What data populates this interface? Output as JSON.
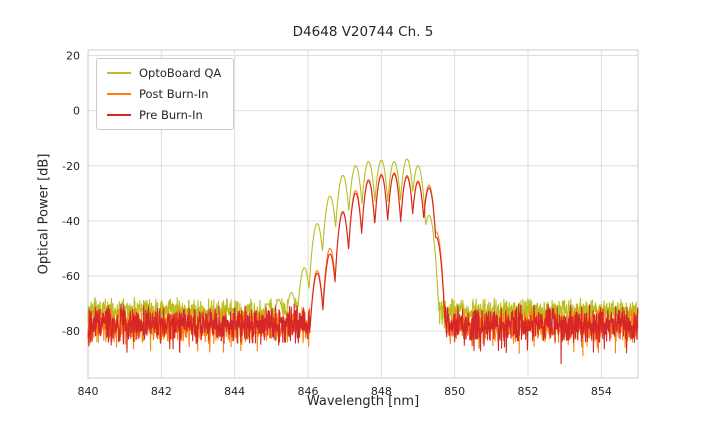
{
  "chart_data": {
    "type": "line",
    "title": "D4648 V20744 Ch. 5",
    "xlabel": "Wavelength [nm]",
    "ylabel": "Optical Power [dB]",
    "xlim": [
      840,
      855
    ],
    "ylim": [
      -97,
      22
    ],
    "xticks": [
      840,
      842,
      844,
      846,
      848,
      850,
      852,
      854
    ],
    "yticks": [
      20,
      0,
      -20,
      -40,
      -60,
      -80
    ],
    "grid": true,
    "legend_position": "upper left",
    "sample_step_nm": 0.008,
    "style": {
      "background": "#ffffff",
      "grid_color": "#dddddd",
      "axes_edge_color": "#cccccc",
      "text_color": "#262626",
      "tick_font_px": 11,
      "line_width": 1.1
    },
    "series": [
      {
        "name": "OptoBoard QA",
        "color": "#bcbd22",
        "sharpness_db_per_nm2": 480,
        "noise": {
          "floor_db": -72.5,
          "spread_db": 5,
          "spike_prob": 0.05,
          "spike_extra_db": 8,
          "seed": 7
        },
        "modes": [
          [
            844.9,
            -70
          ],
          [
            845.2,
            -68.5
          ],
          [
            845.55,
            -66
          ],
          [
            845.9,
            -57
          ],
          [
            846.25,
            -41
          ],
          [
            846.6,
            -31
          ],
          [
            846.95,
            -23.5
          ],
          [
            847.3,
            -20
          ],
          [
            847.65,
            -18.5
          ],
          [
            848.0,
            -18
          ],
          [
            848.35,
            -18.5
          ],
          [
            848.7,
            -17.5
          ],
          [
            849.0,
            -20
          ],
          [
            849.3,
            -38
          ]
        ]
      },
      {
        "name": "Post Burn-In",
        "color": "#ff7f0e",
        "sharpness_db_per_nm2": 550,
        "noise": {
          "floor_db": -78,
          "spread_db": 7,
          "spike_prob": 0.08,
          "spike_extra_db": 8,
          "seed": 13
        },
        "modes": [
          [
            846.25,
            -58
          ],
          [
            846.6,
            -50
          ],
          [
            846.95,
            -36.5
          ],
          [
            847.3,
            -29
          ],
          [
            847.65,
            -25
          ],
          [
            848.0,
            -23
          ],
          [
            848.35,
            -22.5
          ],
          [
            848.7,
            -23.5
          ],
          [
            849.0,
            -25.5
          ],
          [
            849.3,
            -27
          ],
          [
            849.5,
            -44
          ]
        ]
      },
      {
        "name": "Pre Burn-In",
        "color": "#d62728",
        "sharpness_db_per_nm2": 550,
        "noise": {
          "floor_db": -77.5,
          "spread_db": 7.5,
          "spike_prob": 0.08,
          "spike_extra_db": 9,
          "seed": 29
        },
        "modes": [
          [
            846.25,
            -59
          ],
          [
            846.6,
            -52
          ],
          [
            846.95,
            -37
          ],
          [
            847.3,
            -30
          ],
          [
            847.65,
            -25.5
          ],
          [
            848.0,
            -23.5
          ],
          [
            848.35,
            -23
          ],
          [
            848.7,
            -24
          ],
          [
            849.0,
            -26
          ],
          [
            849.3,
            -28
          ],
          [
            849.5,
            -46
          ]
        ]
      }
    ]
  }
}
